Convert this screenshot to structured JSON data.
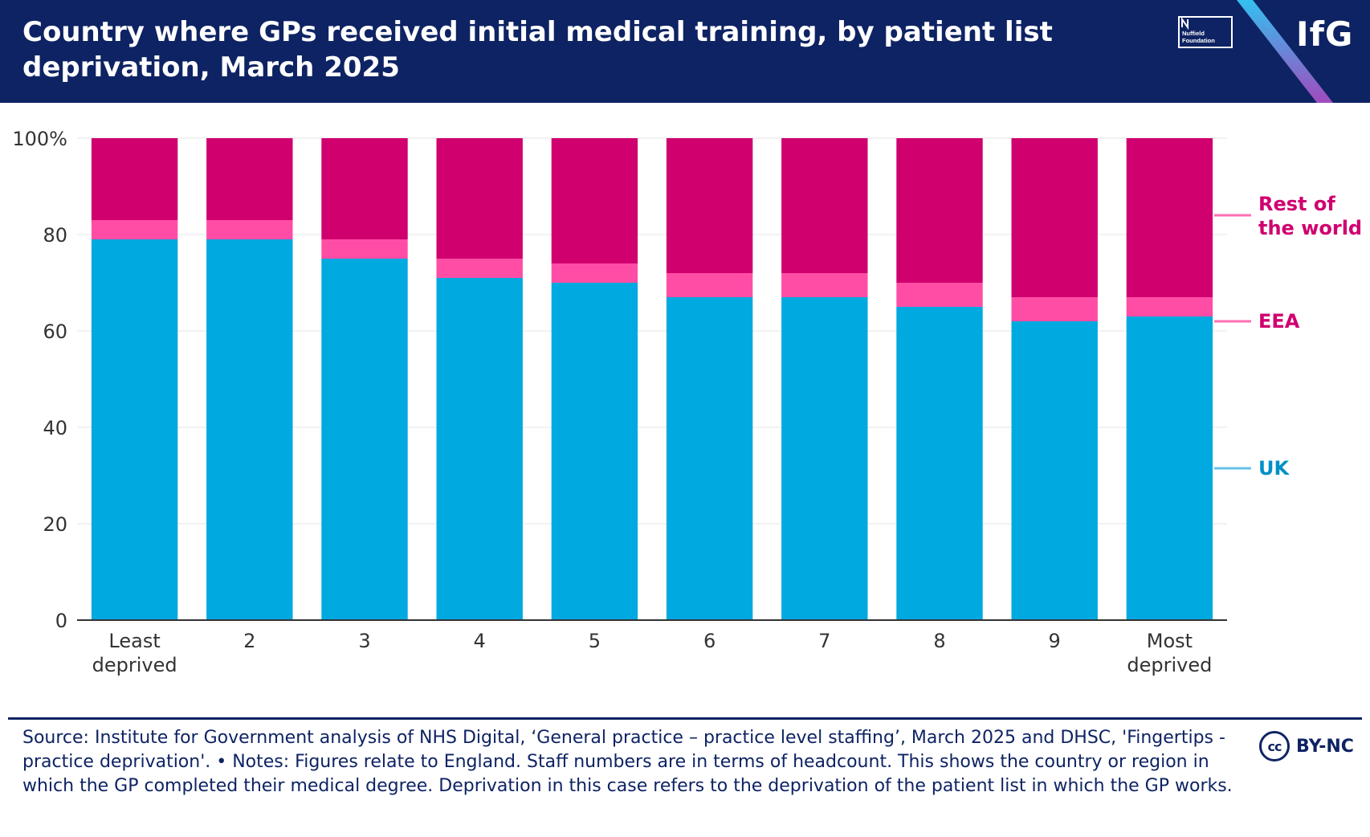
{
  "header": {
    "title": "Country where GPs received initial medical training, by patient list deprivation, March 2025",
    "nuffield_logo_text": "Nuffield Foundation",
    "ifg_logo_text": "IfG"
  },
  "colors": {
    "header_bg": "#0e2363",
    "uk": "#00a9e0",
    "eea": "#ff4da6",
    "rest_of_world": "#d0006f",
    "axis_text": "#333333"
  },
  "chart_data": {
    "type": "bar",
    "stacked": true,
    "categories": [
      "Least\ndeprived",
      "2",
      "3",
      "4",
      "5",
      "6",
      "7",
      "8",
      "9",
      "Most\ndeprived"
    ],
    "series": [
      {
        "name": "UK",
        "color": "#00a9e0",
        "values": [
          79,
          79,
          75,
          71,
          70,
          67,
          67,
          65,
          62,
          63
        ]
      },
      {
        "name": "EEA",
        "color": "#ff4da6",
        "values": [
          4,
          4,
          4,
          4,
          4,
          5,
          5,
          5,
          5,
          4
        ]
      },
      {
        "name": "Rest of the world",
        "color": "#d0006f",
        "values": [
          17,
          17,
          21,
          25,
          26,
          28,
          28,
          30,
          33,
          33
        ]
      }
    ],
    "legend_labels": [
      "Rest of the world",
      "EEA",
      "UK"
    ],
    "y_ticks": [
      "100%",
      "80",
      "60",
      "40",
      "20",
      "0"
    ],
    "ylim": [
      0,
      100
    ],
    "title": "Country where GPs received initial medical training, by patient list deprivation, March 2025",
    "xlabel": "",
    "ylabel": "",
    "legend": "right"
  },
  "footer": {
    "source": "Source: Institute for Government analysis of NHS Digital, ‘General practice – practice level staffing’, March 2025 and DHSC, 'Fingertips - practice deprivation'. • Notes: Figures relate to England. Staff numbers are in terms of headcount. This shows the country or region in which the GP completed their medical degree. Deprivation in this case refers to the deprivation of the patient list in which the GP works.",
    "license_icon": "cc",
    "license": "BY-NC"
  }
}
